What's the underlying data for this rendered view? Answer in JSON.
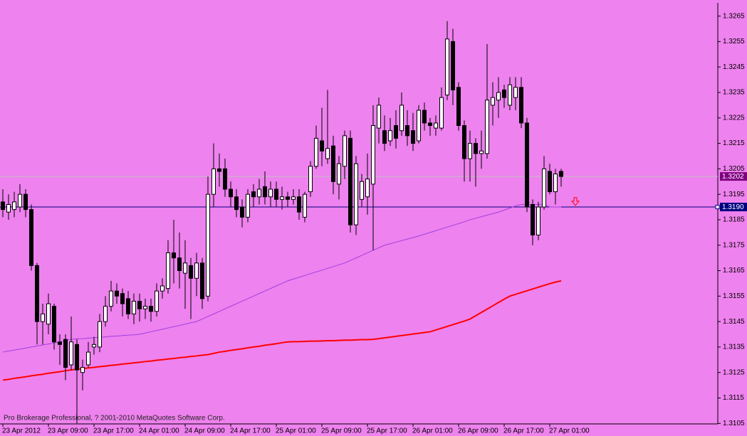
{
  "chart_data": {
    "type": "candlestick",
    "copyright": "Pro Brokerage Professional, ? 2001-2010 MetaQuotes Software Corp.",
    "background": "#ee82ee",
    "categories": [
      "23 Apr 2012",
      null,
      null,
      null,
      null,
      null,
      null,
      null,
      "23 Apr 09:00",
      null,
      null,
      null,
      null,
      null,
      null,
      null,
      "23 Apr 17:00",
      null,
      null,
      null,
      null,
      null,
      null,
      null,
      "24 Apr 01:00",
      null,
      null,
      null,
      null,
      null,
      null,
      null,
      "24 Apr 09:00",
      null,
      null,
      null,
      null,
      null,
      null,
      null,
      "24 Apr 17:00",
      null,
      null,
      null,
      null,
      null,
      null,
      null,
      "25 Apr 01:00",
      null,
      null,
      null,
      null,
      null,
      null,
      null,
      "25 Apr 09:00",
      null,
      null,
      null,
      null,
      null,
      null,
      null,
      "25 Apr 17:00",
      null,
      null,
      null,
      null,
      null,
      null,
      null,
      "26 Apr 01:00",
      null,
      null,
      null,
      null,
      null,
      null,
      null,
      "26 Apr 09:00",
      null,
      null,
      null,
      null,
      null,
      null,
      null,
      "26 Apr 17:00",
      null,
      null,
      null,
      null,
      null,
      null,
      null,
      "27 Apr 01:00",
      null,
      null
    ],
    "open": [
      1.3192,
      1.3188,
      1.3189,
      1.319,
      1.3195,
      1.3189,
      1.3167,
      1.3145,
      1.3144,
      1.3151,
      1.3137,
      1.3138,
      1.3128,
      1.3136,
      1.3125,
      1.3128,
      1.3135,
      1.3135,
      1.3145,
      1.3151,
      1.3157,
      1.3156,
      1.3154,
      1.3148,
      1.3153,
      1.315,
      1.3151,
      1.3149,
      1.3157,
      1.3158,
      1.3172,
      1.317,
      1.3164,
      1.3167,
      1.3162,
      1.3168,
      1.3155,
      1.3195,
      1.3205,
      1.3205,
      1.3197,
      1.3194,
      1.319,
      1.3186,
      1.3196,
      1.3194,
      1.3198,
      1.3194,
      1.3197,
      1.3193,
      1.3194,
      1.3193,
      1.3194,
      1.3186,
      1.3196,
      1.3206,
      1.3216,
      1.3209,
      1.3214,
      1.3199,
      1.3206,
      1.3217,
      1.3183,
      1.3193,
      1.3194,
      1.3199,
      1.3221,
      1.322,
      1.3216,
      1.3222,
      1.322,
      1.3222,
      1.322,
      1.3216,
      1.3228,
      1.3223,
      1.3221,
      1.3221,
      1.3234,
      1.3255,
      1.3237,
      1.3222,
      1.3209,
      1.3215,
      1.3211,
      1.3211,
      1.323,
      1.3232,
      1.3236,
      1.323,
      1.3233,
      1.3237,
      1.3223,
      1.3191,
      1.3179,
      1.319,
      1.3204,
      1.3196,
      1.3204
    ],
    "high": [
      1.3197,
      1.3195,
      1.3196,
      1.3199,
      1.3197,
      1.3191,
      1.3168,
      1.3152,
      1.3156,
      1.3152,
      1.314,
      1.314,
      1.3147,
      1.3138,
      1.313,
      1.3137,
      1.3139,
      1.3148,
      1.3155,
      1.3161,
      1.316,
      1.3158,
      1.3157,
      1.3156,
      1.3156,
      1.3154,
      1.3154,
      1.316,
      1.3162,
      1.3177,
      1.3185,
      1.318,
      1.3177,
      1.317,
      1.3172,
      1.317,
      1.3202,
      1.3215,
      1.3211,
      1.3209,
      1.32,
      1.3197,
      1.3193,
      1.3197,
      1.3199,
      1.3201,
      1.3204,
      1.32,
      1.32,
      1.3198,
      1.3196,
      1.3197,
      1.3197,
      1.3196,
      1.3208,
      1.3222,
      1.3229,
      1.3236,
      1.3218,
      1.321,
      1.322,
      1.322,
      1.321,
      1.3203,
      1.3211,
      1.323,
      1.3233,
      1.3226,
      1.3225,
      1.3228,
      1.3235,
      1.3228,
      1.3227,
      1.323,
      1.3231,
      1.3225,
      1.3226,
      1.3237,
      1.3263,
      1.326,
      1.3239,
      1.3224,
      1.322,
      1.3217,
      1.322,
      1.3254,
      1.3239,
      1.3241,
      1.3238,
      1.3241,
      1.3241,
      1.3241,
      1.3225,
      1.3193,
      1.3192,
      1.321,
      1.3207,
      1.3205,
      1.3205
    ],
    "low": [
      1.3186,
      1.3185,
      1.3186,
      1.3188,
      1.3186,
      1.3165,
      1.3136,
      1.3136,
      1.314,
      1.3134,
      1.3128,
      1.3122,
      1.3126,
      1.3105,
      1.3118,
      1.3127,
      1.3132,
      1.3133,
      1.3143,
      1.3149,
      1.3152,
      1.3147,
      1.3146,
      1.3144,
      1.3145,
      1.3146,
      1.3145,
      1.3147,
      1.3154,
      1.3156,
      1.316,
      1.3158,
      1.315,
      1.3146,
      1.3155,
      1.315,
      1.3153,
      1.319,
      1.3198,
      1.3194,
      1.319,
      1.3186,
      1.3182,
      1.3184,
      1.319,
      1.3191,
      1.3191,
      1.319,
      1.319,
      1.3189,
      1.319,
      1.3191,
      1.3185,
      1.3184,
      1.3194,
      1.3205,
      1.3206,
      1.3207,
      1.3195,
      1.3193,
      1.3201,
      1.318,
      1.3179,
      1.319,
      1.3187,
      1.3173,
      1.3215,
      1.3212,
      1.3214,
      1.3213,
      1.3218,
      1.3214,
      1.3212,
      1.3215,
      1.322,
      1.3218,
      1.3218,
      1.322,
      1.3232,
      1.323,
      1.322,
      1.32,
      1.32,
      1.3198,
      1.3205,
      1.3209,
      1.3222,
      1.3225,
      1.3229,
      1.3228,
      1.3228,
      1.3221,
      1.3188,
      1.3175,
      1.3177,
      1.3189,
      1.3195,
      1.3191,
      1.3198
    ],
    "close": [
      1.3189,
      1.3191,
      1.3192,
      1.3195,
      1.3189,
      1.3167,
      1.3145,
      1.3148,
      1.3152,
      1.3137,
      1.3136,
      1.3127,
      1.3137,
      1.3126,
      1.3127,
      1.3133,
      1.3136,
      1.3145,
      1.3151,
      1.3157,
      1.3155,
      1.3152,
      1.3148,
      1.3153,
      1.315,
      1.3151,
      1.3149,
      1.3157,
      1.3159,
      1.3172,
      1.317,
      1.3165,
      1.3168,
      1.3162,
      1.3168,
      1.3154,
      1.3195,
      1.3205,
      1.3204,
      1.3197,
      1.3194,
      1.3189,
      1.3186,
      1.3195,
      1.3194,
      1.3197,
      1.3194,
      1.3197,
      1.3193,
      1.3194,
      1.3193,
      1.3194,
      1.3188,
      1.3195,
      1.3206,
      1.3217,
      1.3212,
      1.3213,
      1.32,
      1.3207,
      1.3218,
      1.3183,
      1.3207,
      1.32,
      1.3201,
      1.3222,
      1.323,
      1.3215,
      1.322,
      1.3217,
      1.323,
      1.3218,
      1.3215,
      1.3228,
      1.3223,
      1.3222,
      1.3223,
      1.3233,
      1.3256,
      1.3236,
      1.3222,
      1.3209,
      1.3215,
      1.3211,
      1.3212,
      1.3232,
      1.3233,
      1.3235,
      1.3233,
      1.3238,
      1.3237,
      1.3223,
      1.319,
      1.3179,
      1.319,
      1.3205,
      1.3196,
      1.3203,
      1.3202
    ],
    "overlays": [
      {
        "color": "#a040e0",
        "width": 1,
        "values": [
          1.3133,
          1.31334,
          1.31338,
          1.31342,
          1.31346,
          1.3135,
          1.31354,
          1.31358,
          1.31362,
          1.31366,
          1.3137,
          1.31375,
          1.3138,
          1.31382,
          1.31383,
          1.31385,
          1.31387,
          1.31388,
          1.3139,
          1.31392,
          1.31393,
          1.31395,
          1.31397,
          1.31398,
          1.314,
          1.31405,
          1.3141,
          1.31415,
          1.3142,
          1.31425,
          1.3143,
          1.31435,
          1.3144,
          1.31445,
          1.3145,
          1.3146,
          1.3147,
          1.3148,
          1.3149,
          1.315,
          1.3151,
          1.3152,
          1.3153,
          1.3154,
          1.3155,
          1.3156,
          1.3157,
          1.3158,
          1.3159,
          1.316,
          1.3161,
          1.31617,
          1.31624,
          1.31631,
          1.31638,
          1.31645,
          1.31652,
          1.31659,
          1.31666,
          1.31673,
          1.3168,
          1.3169,
          1.317,
          1.3171,
          1.3172,
          1.3173,
          1.3174,
          1.3175,
          1.31756,
          1.31762,
          1.31768,
          1.31774,
          1.3178,
          1.31786,
          1.31793,
          1.318,
          1.31807,
          1.31814,
          1.31821,
          1.31828,
          1.31835,
          1.31842,
          1.3185,
          1.31856,
          1.31862,
          1.31868,
          1.31874,
          1.3188,
          1.31888,
          1.31896,
          1.31904,
          1.3191,
          1.3191,
          1.3191,
          1.3191,
          1.3191,
          1.319,
          1.319,
          1.319
        ]
      },
      {
        "color": "#ff0000",
        "width": 2,
        "values": [
          1.3122,
          1.31223,
          1.31227,
          1.3123,
          1.31233,
          1.31237,
          1.3124,
          1.31243,
          1.31247,
          1.3125,
          1.31253,
          1.31257,
          1.3126,
          1.31263,
          1.31265,
          1.31268,
          1.3127,
          1.31273,
          1.31275,
          1.31278,
          1.3128,
          1.31283,
          1.31285,
          1.31288,
          1.3129,
          1.31293,
          1.31295,
          1.31298,
          1.313,
          1.31303,
          1.31305,
          1.31308,
          1.3131,
          1.31313,
          1.31315,
          1.31318,
          1.3132,
          1.31325,
          1.3133,
          1.31333,
          1.31337,
          1.3134,
          1.31343,
          1.31347,
          1.3135,
          1.31353,
          1.31357,
          1.3136,
          1.31363,
          1.31367,
          1.3137,
          1.31371,
          1.31371,
          1.31372,
          1.31373,
          1.31373,
          1.31374,
          1.31375,
          1.31375,
          1.31376,
          1.31377,
          1.31377,
          1.31378,
          1.31379,
          1.31379,
          1.3138,
          1.31383,
          1.31386,
          1.31389,
          1.31392,
          1.31395,
          1.31398,
          1.31401,
          1.31404,
          1.31407,
          1.3141,
          1.31417,
          1.31424,
          1.31431,
          1.31438,
          1.31445,
          1.31452,
          1.3146,
          1.31473,
          1.31486,
          1.31499,
          1.31512,
          1.31525,
          1.31538,
          1.3155,
          1.31557,
          1.31564,
          1.31571,
          1.31578,
          1.31585,
          1.31592,
          1.31599,
          1.31605,
          1.3161
        ]
      }
    ],
    "price_lines": [
      {
        "value": 1.3202,
        "color": "#c0c0c0",
        "tag_color": "#800080"
      },
      {
        "value": 1.319,
        "label": "1.3190",
        "color": "#000080",
        "tag_color": "#000080"
      }
    ],
    "arrow": {
      "value": 1.3192,
      "color": "#ff0000"
    },
    "ylim": [
      1.31048,
      1.32702
    ],
    "yticks": [
      1.3105,
      1.3115,
      1.3125,
      1.3135,
      1.3145,
      1.3155,
      1.3165,
      1.3175,
      1.3185,
      1.3195,
      1.3205,
      1.3215,
      1.3225,
      1.3235,
      1.3245,
      1.3255,
      1.3265
    ]
  }
}
